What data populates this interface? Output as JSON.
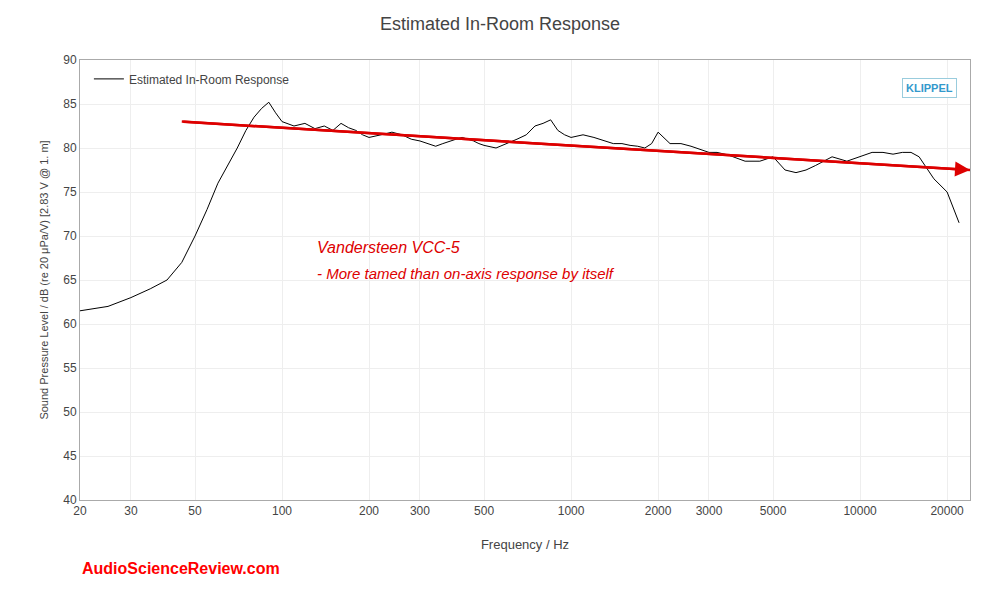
{
  "chart_data": {
    "type": "line",
    "title": "Estimated In-Room Response",
    "xlabel": "Frequency / Hz",
    "ylabel": "Sound Pressure Level / dB (re 20 μPa/V) [2.83 V @ 1. m]",
    "log": "x",
    "grid": true,
    "legend": "upper left",
    "xlim": [
      20,
      24000
    ],
    "ylim": [
      40,
      90
    ],
    "xticks": [
      20,
      30,
      50,
      100,
      200,
      300,
      500,
      1000,
      2000,
      3000,
      5000,
      10000,
      20000
    ],
    "yticks": [
      40,
      45,
      50,
      55,
      60,
      65,
      70,
      75,
      80,
      85,
      90
    ],
    "x": [
      20,
      25,
      30,
      35,
      40,
      45,
      50,
      55,
      60,
      65,
      70,
      75,
      80,
      85,
      90,
      95,
      100,
      110,
      120,
      130,
      140,
      150,
      160,
      170,
      180,
      190,
      200,
      220,
      240,
      260,
      280,
      300,
      320,
      340,
      360,
      380,
      400,
      420,
      440,
      460,
      480,
      500,
      550,
      600,
      650,
      700,
      750,
      800,
      850,
      900,
      950,
      1000,
      1100,
      1200,
      1300,
      1400,
      1500,
      1600,
      1700,
      1800,
      1900,
      2000,
      2200,
      2400,
      2600,
      2800,
      3000,
      3200,
      3500,
      4000,
      4500,
      5000,
      5500,
      6000,
      6500,
      7000,
      7500,
      8000,
      9000,
      10000,
      11000,
      12000,
      13000,
      14000,
      15000,
      16000,
      18000,
      20000,
      22000
    ],
    "series": [
      {
        "name": "Estimated In-Room Response",
        "color": "#000000",
        "values": [
          61.5,
          62,
          63,
          64,
          65,
          67,
          70,
          73,
          76,
          78,
          80,
          82,
          83.5,
          84.5,
          85.2,
          84,
          83.0,
          82.5,
          82.8,
          82.2,
          82.5,
          82.0,
          82.8,
          82.3,
          82.0,
          81.5,
          81.2,
          81.5,
          81.8,
          81.5,
          81.0,
          80.8,
          80.5,
          80.2,
          80.5,
          80.8,
          81.0,
          81.2,
          81.0,
          80.8,
          80.5,
          80.3,
          80.0,
          80.5,
          81.0,
          81.5,
          82.5,
          82.8,
          83.2,
          82.0,
          81.5,
          81.2,
          81.5,
          81.2,
          80.8,
          80.5,
          80.5,
          80.3,
          80.2,
          80.0,
          80.5,
          81.8,
          80.5,
          80.5,
          80.2,
          79.8,
          79.5,
          79.5,
          79.2,
          78.5,
          78.5,
          79.0,
          77.5,
          77.2,
          77.5,
          78.0,
          78.5,
          79.0,
          78.5,
          79.0,
          79.5,
          79.5,
          79.3,
          79.5,
          79.5,
          79.0,
          76.5,
          75.0,
          71.5
        ]
      }
    ],
    "trend": {
      "x": [
        45,
        24000
      ],
      "values": [
        83.0,
        77.5
      ],
      "color": "#dd0000"
    },
    "annotations": [
      {
        "text": "Vandersteen VCC-5",
        "x": 130,
        "y": 67.5,
        "color": "#dd0000"
      },
      {
        "text": "- More tamed than on-axis response by itself",
        "x": 130,
        "y": 64.5,
        "color": "#dd0000"
      },
      {
        "text": "AudioScienceReview.com",
        "color": "red"
      },
      {
        "text": "KLIPPEL",
        "color": "#3399cc"
      }
    ]
  }
}
